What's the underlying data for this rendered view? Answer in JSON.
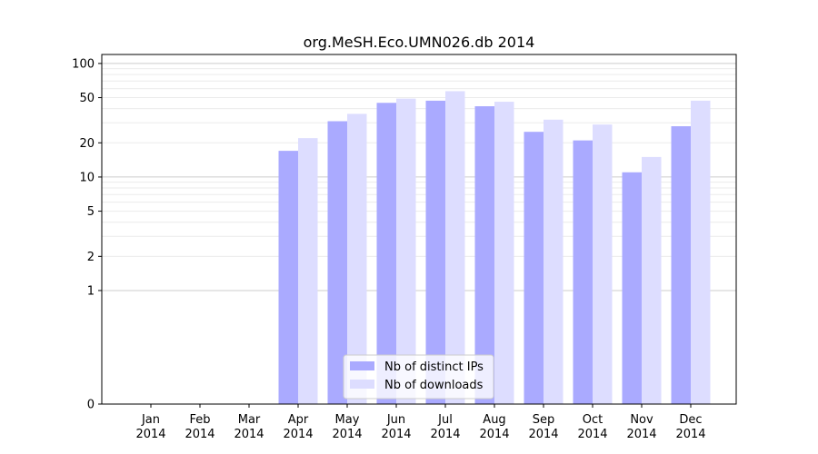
{
  "chart_data": {
    "type": "bar",
    "title": "org.MeSH.Eco.UMN026.db 2014",
    "xlabel": "",
    "ylabel": "",
    "yscale": "symlog",
    "ylim": [
      0,
      120
    ],
    "yticks": [
      0,
      1,
      2,
      5,
      10,
      20,
      50,
      100
    ],
    "grid": true,
    "legend_position": "bottom-center",
    "categories": [
      [
        "Jan",
        "2014"
      ],
      [
        "Feb",
        "2014"
      ],
      [
        "Mar",
        "2014"
      ],
      [
        "Apr",
        "2014"
      ],
      [
        "May",
        "2014"
      ],
      [
        "Jun",
        "2014"
      ],
      [
        "Jul",
        "2014"
      ],
      [
        "Aug",
        "2014"
      ],
      [
        "Sep",
        "2014"
      ],
      [
        "Oct",
        "2014"
      ],
      [
        "Nov",
        "2014"
      ],
      [
        "Dec",
        "2014"
      ]
    ],
    "series": [
      {
        "name": "Nb of distinct IPs",
        "color": "#aaaaff",
        "values": [
          0,
          0,
          0,
          17,
          31,
          45,
          47,
          42,
          25,
          21,
          11,
          28
        ]
      },
      {
        "name": "Nb of downloads",
        "color": "#ddddff",
        "values": [
          0,
          0,
          0,
          22,
          36,
          49,
          57,
          46,
          32,
          29,
          15,
          47
        ]
      }
    ]
  }
}
